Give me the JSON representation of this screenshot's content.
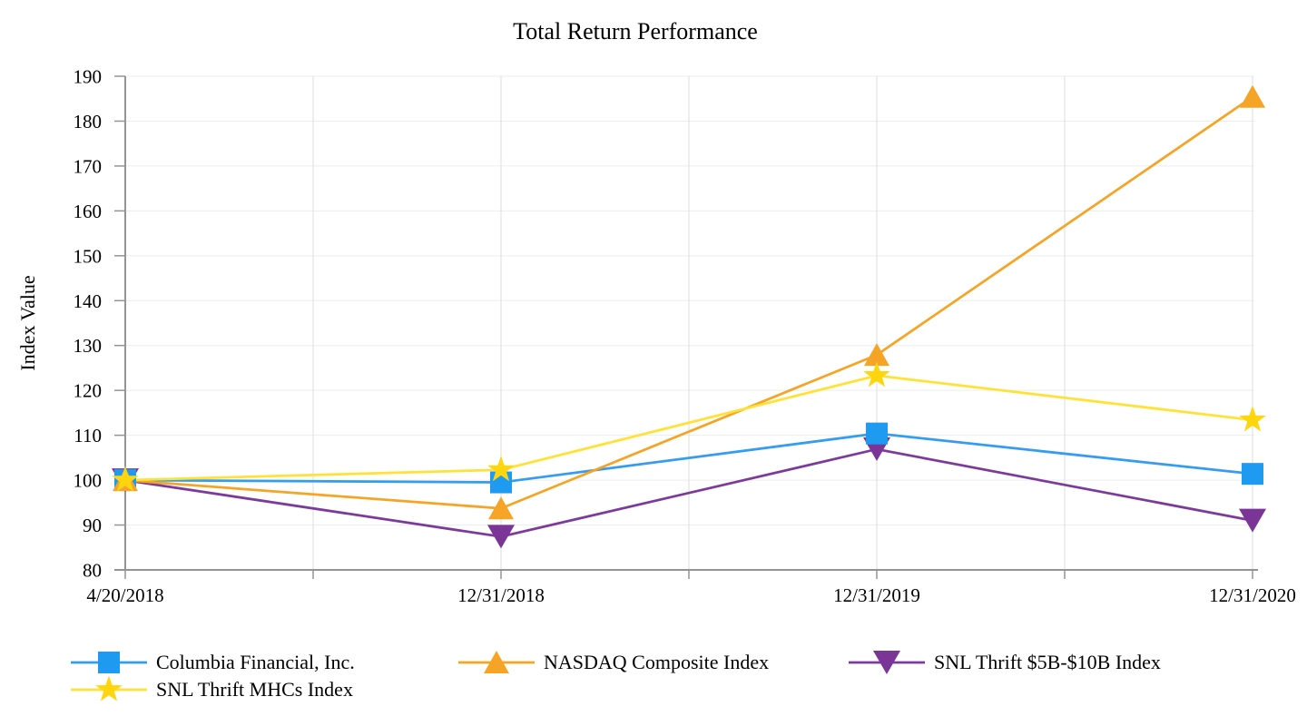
{
  "chart_data": {
    "type": "line",
    "title": "Total Return Performance",
    "ylabel": "Index Value",
    "xlabel": "",
    "categories": [
      "4/20/2018",
      "12/31/2018",
      "12/31/2019",
      "12/31/2020"
    ],
    "series": [
      {
        "name": "Columbia Financial, Inc.",
        "marker": "square",
        "color": "#1E9AF0",
        "line_color": "#349CF1",
        "values": [
          100,
          99.5,
          110.4,
          101.4
        ]
      },
      {
        "name": "NASDAQ Composite Index",
        "marker": "triangle-up",
        "color": "#F6A425",
        "line_color": "#F6A425",
        "values": [
          100,
          93.7,
          127.9,
          185.4
        ]
      },
      {
        "name": "SNL Thrift $5B-$10B Index",
        "marker": "triangle-down",
        "color": "#7A3597",
        "line_color": "#7C3B9C",
        "values": [
          100,
          87.4,
          106.9,
          91.0
        ]
      },
      {
        "name": "SNL Thrift MHCs Index",
        "marker": "star",
        "color": "#FFD60E",
        "line_color": "#FFE235",
        "values": [
          100,
          102.3,
          123.3,
          113.4
        ]
      }
    ],
    "ylim": [
      80,
      190
    ],
    "ytick_step": 10,
    "y_tick_labels": [
      "80",
      "90",
      "100",
      "110",
      "120",
      "130",
      "140",
      "150",
      "160",
      "170",
      "180",
      "190"
    ],
    "grid": true,
    "x_minor_ticks": true,
    "legend_position": "bottom",
    "axis_color": "#949494",
    "gridline_color": "#EDEDED",
    "minor_gridline_color": "#DEDEDE",
    "text_color": "#000000"
  }
}
